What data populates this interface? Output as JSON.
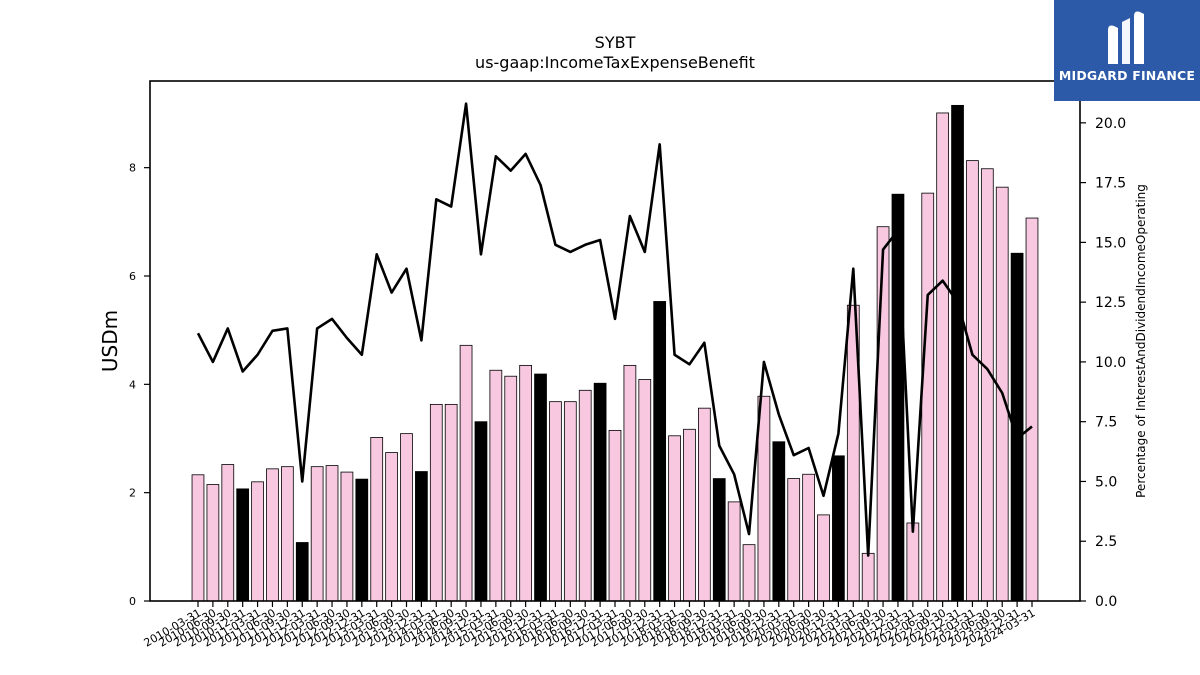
{
  "brand": {
    "name": "MIDGARD FINANCE",
    "bg_color": "#2c5aa8",
    "mark_icon": "midgard-logo-icon"
  },
  "chart_data": {
    "type": "bar",
    "title": "SYBT",
    "subtitle": "us-gaap:IncomeTaxExpenseBenefit",
    "ylabel": "USDm",
    "y2label": "Percentage of InterestAndDividendIncomeOperating",
    "ylim": [
      0,
      9.6
    ],
    "y2lim": [
      0,
      21.75
    ],
    "yticks": [
      0,
      2,
      4,
      6,
      8
    ],
    "y2ticks": [
      0.0,
      2.5,
      5.0,
      7.5,
      10.0,
      12.5,
      15.0,
      17.5,
      20.0
    ],
    "colors": {
      "bar_default": "#f7c8e0",
      "bar_q4": "#000000",
      "bar_edge": "#000000",
      "line": "#000000"
    },
    "categories": [
      "2010-03-31",
      "2010-06-30",
      "2010-09-30",
      "2010-12-31",
      "2011-03-31",
      "2011-06-30",
      "2011-09-30",
      "2011-12-31",
      "2012-03-31",
      "2012-06-30",
      "2012-09-30",
      "2012-12-31",
      "2013-03-31",
      "2013-06-30",
      "2013-09-30",
      "2013-12-31",
      "2014-03-31",
      "2014-06-30",
      "2014-09-30",
      "2014-12-31",
      "2015-03-31",
      "2015-06-30",
      "2015-09-30",
      "2015-12-31",
      "2016-03-31",
      "2016-06-30",
      "2016-09-30",
      "2016-12-31",
      "2017-03-31",
      "2017-06-30",
      "2017-09-30",
      "2017-12-31",
      "2018-03-31",
      "2018-06-30",
      "2018-09-30",
      "2018-12-31",
      "2019-03-31",
      "2019-06-30",
      "2019-09-30",
      "2019-12-31",
      "2020-03-31",
      "2020-06-30",
      "2020-09-30",
      "2020-12-31",
      "2021-03-31",
      "2021-06-30",
      "2021-09-30",
      "2021-12-31",
      "2022-03-31",
      "2022-06-30",
      "2022-09-30",
      "2022-12-31",
      "2023-03-31",
      "2023-06-30",
      "2023-09-30",
      "2023-12-31",
      "2024-03-31"
    ],
    "series": [
      {
        "type": "bar",
        "values": [
          2.33,
          2.15,
          2.52,
          2.07,
          2.2,
          2.44,
          2.48,
          1.08,
          2.48,
          2.5,
          2.38,
          2.25,
          3.02,
          2.74,
          3.09,
          2.39,
          3.63,
          3.63,
          4.72,
          3.31,
          4.26,
          4.15,
          4.35,
          4.19,
          3.68,
          3.68,
          3.89,
          4.02,
          3.15,
          4.35,
          4.09,
          5.53,
          3.05,
          3.17,
          3.56,
          2.26,
          1.83,
          1.04,
          3.78,
          2.94,
          2.26,
          2.34,
          1.59,
          2.68,
          5.46,
          0.88,
          6.91,
          7.51,
          1.44,
          7.53,
          9.01,
          9.15,
          8.13,
          7.98,
          7.64,
          6.42,
          7.07
        ]
      },
      {
        "type": "line",
        "axis": "right",
        "values": [
          11.2,
          10.0,
          11.4,
          9.6,
          10.3,
          11.3,
          11.4,
          5.0,
          11.4,
          11.8,
          11.0,
          10.3,
          14.5,
          12.9,
          13.9,
          10.9,
          16.8,
          16.5,
          20.8,
          14.5,
          18.6,
          18.0,
          18.7,
          17.4,
          14.9,
          14.6,
          14.9,
          15.1,
          11.8,
          16.1,
          14.6,
          19.1,
          10.3,
          9.9,
          10.8,
          6.5,
          5.3,
          2.8,
          10.0,
          7.8,
          6.1,
          6.4,
          4.4,
          7.0,
          13.9,
          1.9,
          14.7,
          15.5,
          2.9,
          12.8,
          13.4,
          12.5,
          10.3,
          9.7,
          8.7,
          6.8,
          7.3
        ]
      }
    ]
  }
}
